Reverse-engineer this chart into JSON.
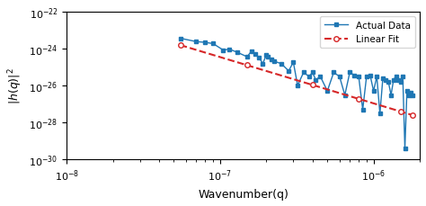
{
  "title": "",
  "xlabel": "Wavenumber(q)",
  "ylabel": "|h(q)|$^2$",
  "xlim": [
    1e-08,
    2e-06
  ],
  "ylim": [
    1e-30,
    1e-22
  ],
  "line_color": "#1f77b4",
  "fit_color": "#d62728",
  "legend_actual": "Actual Data",
  "legend_fit": "Linear Fit",
  "actual_x": [
    5.5e-08,
    7e-08,
    8e-08,
    9e-08,
    1.05e-07,
    1.15e-07,
    1.3e-07,
    1.5e-07,
    1.6e-07,
    1.7e-07,
    1.8e-07,
    1.9e-07,
    2e-07,
    2.05e-07,
    2.15e-07,
    2.25e-07,
    2.5e-07,
    2.8e-07,
    3e-07,
    3.2e-07,
    3.5e-07,
    3.8e-07,
    4e-07,
    4.2e-07,
    4.5e-07,
    5e-07,
    5.5e-07,
    6e-07,
    6.5e-07,
    7e-07,
    7.5e-07,
    8e-07,
    8.5e-07,
    9e-07,
    9.5e-07,
    1e-06,
    1.05e-06,
    1.1e-06,
    1.15e-06,
    1.2e-06,
    1.25e-06,
    1.3e-06,
    1.35e-06,
    1.4e-06,
    1.45e-06,
    1.5e-06,
    1.55e-06,
    1.6e-06,
    1.65e-06,
    1.7e-06,
    1.75e-06,
    1.8e-06
  ],
  "actual_y": [
    3.5e-24,
    2.3e-24,
    2.1e-24,
    1.8e-24,
    8e-25,
    9e-25,
    6e-25,
    3.5e-25,
    7e-25,
    5e-25,
    3e-25,
    1.5e-25,
    4.5e-25,
    3.5e-25,
    2.5e-25,
    2e-25,
    1.5e-25,
    6e-26,
    1.8e-25,
    1e-26,
    5e-26,
    3e-26,
    5e-26,
    2e-26,
    3e-26,
    5e-27,
    5e-26,
    3e-26,
    3e-27,
    5e-26,
    3.5e-26,
    3e-26,
    5e-28,
    3e-26,
    3.5e-26,
    5e-27,
    3e-26,
    3e-28,
    2.5e-26,
    2e-26,
    1.5e-26,
    3e-27,
    2e-26,
    3e-26,
    2e-26,
    1.5e-26,
    3e-26,
    4e-30,
    5e-27,
    3e-27,
    4e-27,
    3e-27
  ],
  "fit_x": [
    5.5e-08,
    1.5e-07,
    4e-07,
    8e-07,
    1.5e-06,
    1.8e-06
  ],
  "fit_slope": -2.5,
  "fit_intercept_log": -16.5
}
